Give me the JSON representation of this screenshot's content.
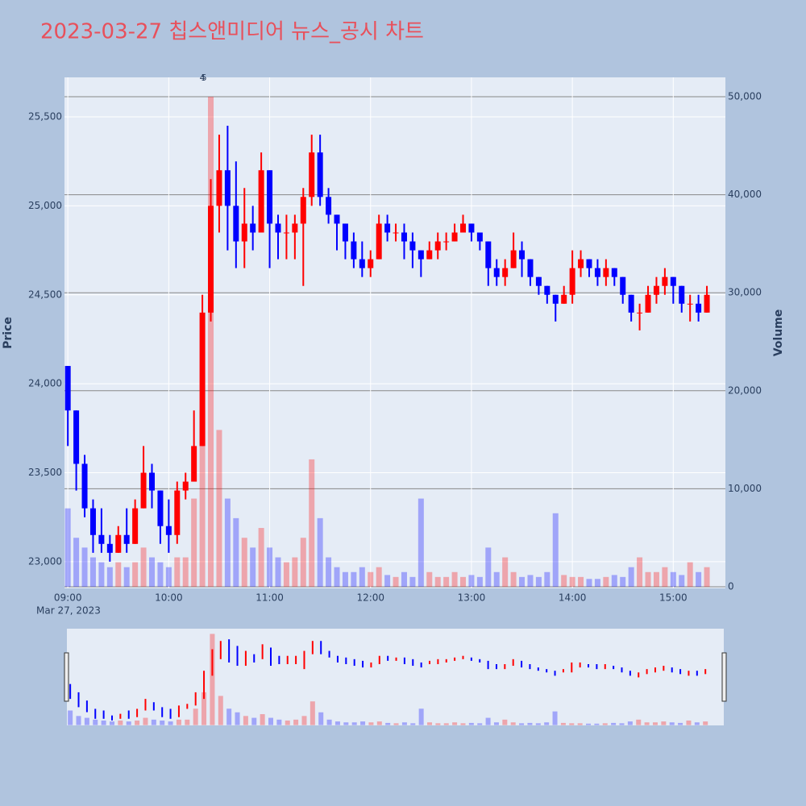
{
  "chart_data": {
    "type": "candlestick",
    "title": "2023-03-27 칩스앤미디어 뉴스_공시 차트",
    "y_title": "Price",
    "y2_title": "Volume",
    "x_date_label": "Mar 27, 2023",
    "increasing_color": "#ff0000",
    "decreasing_color": "#0000ff",
    "annotations": [
      {
        "text": "4",
        "x": "2023-03-27 10:20"
      },
      {
        "text": "5",
        "x": "2023-03-27 10:21"
      }
    ],
    "xlim": [
      "2023-03-27 08:58",
      "2023-03-27 15:31"
    ],
    "xticks": [
      {
        "value": "2023-03-27 09:00",
        "label": "09:00"
      },
      {
        "value": "2023-03-27 10:00",
        "label": "10:00"
      },
      {
        "value": "2023-03-27 11:00",
        "label": "11:00"
      },
      {
        "value": "2023-03-27 12:00",
        "label": "12:00"
      },
      {
        "value": "2023-03-27 13:00",
        "label": "13:00"
      },
      {
        "value": "2023-03-27 14:00",
        "label": "14:00"
      },
      {
        "value": "2023-03-27 15:00",
        "label": "15:00"
      }
    ],
    "ylim": [
      22850,
      25722
    ],
    "yticks": [
      {
        "value": 23000,
        "label": "23,000"
      },
      {
        "value": 23500,
        "label": "23,500"
      },
      {
        "value": 24000,
        "label": "24,000"
      },
      {
        "value": 24500,
        "label": "24,500"
      },
      {
        "value": 25000,
        "label": "25,000"
      },
      {
        "value": 25500,
        "label": "25,500"
      }
    ],
    "y2lim": [
      -164,
      51974
    ],
    "y2ticks": [
      0,
      {
        "value": 10000,
        "label": "10,000"
      },
      {
        "value": 20000,
        "label": "20,000"
      },
      {
        "value": 30000,
        "label": "30,000"
      },
      {
        "value": 40000,
        "label": "40,000"
      },
      {
        "value": 50000,
        "label": "50,000"
      }
    ],
    "x": [
      "2023-03-27 09:00",
      "2023-03-27 09:05",
      "2023-03-27 09:10",
      "2023-03-27 09:15",
      "2023-03-27 09:20",
      "2023-03-27 09:25",
      "2023-03-27 09:30",
      "2023-03-27 09:35",
      "2023-03-27 09:40",
      "2023-03-27 09:45",
      "2023-03-27 09:50",
      "2023-03-27 09:55",
      "2023-03-27 10:00",
      "2023-03-27 10:05",
      "2023-03-27 10:10",
      "2023-03-27 10:15",
      "2023-03-27 10:20",
      "2023-03-27 10:25",
      "2023-03-27 10:30",
      "2023-03-27 10:35",
      "2023-03-27 10:40",
      "2023-03-27 10:45",
      "2023-03-27 10:50",
      "2023-03-27 10:55",
      "2023-03-27 11:00",
      "2023-03-27 11:05",
      "2023-03-27 11:10",
      "2023-03-27 11:15",
      "2023-03-27 11:20",
      "2023-03-27 11:25",
      "2023-03-27 11:30",
      "2023-03-27 11:35",
      "2023-03-27 11:40",
      "2023-03-27 11:45",
      "2023-03-27 11:50",
      "2023-03-27 11:55",
      "2023-03-27 12:00",
      "2023-03-27 12:05",
      "2023-03-27 12:10",
      "2023-03-27 12:15",
      "2023-03-27 12:20",
      "2023-03-27 12:25",
      "2023-03-27 12:30",
      "2023-03-27 12:35",
      "2023-03-27 12:40",
      "2023-03-27 12:45",
      "2023-03-27 12:50",
      "2023-03-27 12:55",
      "2023-03-27 13:00",
      "2023-03-27 13:05",
      "2023-03-27 13:10",
      "2023-03-27 13:15",
      "2023-03-27 13:20",
      "2023-03-27 13:25",
      "2023-03-27 13:30",
      "2023-03-27 13:35",
      "2023-03-27 13:40",
      "2023-03-27 13:45",
      "2023-03-27 13:50",
      "2023-03-27 13:55",
      "2023-03-27 14:00",
      "2023-03-27 14:05",
      "2023-03-27 14:10",
      "2023-03-27 14:15",
      "2023-03-27 14:20",
      "2023-03-27 14:25",
      "2023-03-27 14:30",
      "2023-03-27 14:35",
      "2023-03-27 14:40",
      "2023-03-27 14:45",
      "2023-03-27 14:50",
      "2023-03-27 14:55",
      "2023-03-27 15:00",
      "2023-03-27 15:05",
      "2023-03-27 15:10",
      "2023-03-27 15:15",
      "2023-03-27 15:20"
    ],
    "open": [
      24100,
      23850,
      23550,
      23300,
      23150,
      23100,
      23050,
      23150,
      23100,
      23300,
      23500,
      23400,
      23200,
      23150,
      23400,
      23450,
      23650,
      24400,
      25000,
      25200,
      25000,
      24800,
      24900,
      24850,
      25200,
      24900,
      24850,
      24850,
      24900,
      25050,
      25300,
      25050,
      24950,
      24900,
      24800,
      24700,
      24650,
      24700,
      24900,
      24850,
      24850,
      24800,
      24750,
      24700,
      24750,
      24800,
      24800,
      24850,
      24900,
      24850,
      24800,
      24650,
      24600,
      24650,
      24750,
      24700,
      24600,
      24550,
      24500,
      24450,
      24500,
      24650,
      24700,
      24650,
      24600,
      24650,
      24600,
      24500,
      24400,
      24400,
      24500,
      24550,
      24600,
      24550,
      24450,
      24450,
      24400
    ],
    "high": [
      24100,
      23850,
      23600,
      23350,
      23300,
      23150,
      23200,
      23300,
      23350,
      23650,
      23550,
      23400,
      23350,
      23450,
      23500,
      23850,
      24500,
      25150,
      25400,
      25450,
      25250,
      25100,
      25000,
      25300,
      25200,
      24950,
      24950,
      24950,
      25100,
      25400,
      25400,
      25100,
      24950,
      24900,
      24850,
      24800,
      24750,
      24950,
      24950,
      24900,
      24900,
      24850,
      24750,
      24800,
      24850,
      24850,
      24900,
      24950,
      24900,
      24850,
      24800,
      24700,
      24700,
      24850,
      24800,
      24700,
      24600,
      24550,
      24500,
      24550,
      24750,
      24750,
      24700,
      24700,
      24700,
      24650,
      24600,
      24500,
      24450,
      24550,
      24600,
      24650,
      24600,
      24550,
      24500,
      24500,
      24550
    ],
    "low": [
      23650,
      23400,
      23250,
      23050,
      23050,
      23000,
      23050,
      23050,
      23100,
      23300,
      23300,
      23100,
      23050,
      23100,
      23350,
      23450,
      23650,
      24350,
      24850,
      24750,
      24650,
      24650,
      24750,
      24850,
      24650,
      24700,
      24700,
      24700,
      24550,
      25000,
      25000,
      24900,
      24750,
      24700,
      24650,
      24600,
      24600,
      24700,
      24800,
      24800,
      24700,
      24650,
      24600,
      24700,
      24700,
      24750,
      24800,
      24850,
      24800,
      24750,
      24550,
      24550,
      24550,
      24650,
      24600,
      24550,
      24500,
      24450,
      24350,
      24450,
      24450,
      24600,
      24600,
      24550,
      24550,
      24550,
      24450,
      24350,
      24300,
      24400,
      24450,
      24500,
      24450,
      24400,
      24350,
      24350,
      24400
    ],
    "close": [
      23850,
      23550,
      23300,
      23150,
      23100,
      23050,
      23150,
      23100,
      23300,
      23500,
      23400,
      23200,
      23150,
      23400,
      23450,
      23650,
      24400,
      25000,
      25200,
      25000,
      24800,
      24900,
      24850,
      25200,
      24900,
      24850,
      24850,
      24900,
      25050,
      25300,
      25050,
      24950,
      24900,
      24800,
      24700,
      24650,
      24700,
      24900,
      24850,
      24850,
      24800,
      24750,
      24700,
      24750,
      24800,
      24800,
      24850,
      24900,
      24850,
      24800,
      24650,
      24600,
      24650,
      24750,
      24700,
      24600,
      24550,
      24500,
      24450,
      24500,
      24650,
      24700,
      24650,
      24600,
      24650,
      24600,
      24500,
      24400,
      24400,
      24500,
      24550,
      24600,
      24550,
      24450,
      24450,
      24400,
      24500
    ],
    "volume": [
      8000,
      5000,
      4000,
      3000,
      2500,
      2000,
      2500,
      2000,
      2500,
      4000,
      3000,
      2500,
      2000,
      3000,
      3000,
      9000,
      18000,
      50000,
      16000,
      9000,
      7000,
      5000,
      4000,
      6000,
      4000,
      3000,
      2500,
      3000,
      5000,
      13000,
      7000,
      3000,
      2000,
      1500,
      1500,
      2000,
      1500,
      2000,
      1200,
      1000,
      1500,
      1000,
      9000,
      1500,
      1000,
      1000,
      1500,
      1000,
      1200,
      1000,
      4000,
      1500,
      3000,
      1500,
      1000,
      1200,
      1000,
      1500,
      7500,
      1200,
      1000,
      1000,
      800,
      800,
      1000,
      1200,
      1000,
      2000,
      3000,
      1500,
      1500,
      2000,
      1500,
      1200,
      2500,
      1500,
      2000
    ]
  }
}
